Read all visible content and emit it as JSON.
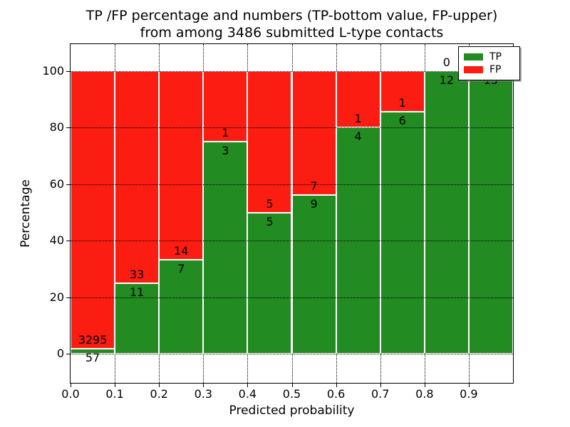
{
  "title": {
    "line1": "TP /FP percentage and numbers (TP-bottom value, FP-upper)",
    "line2": "from among 3486 submitted L-type contacts"
  },
  "axes": {
    "xlabel": "Predicted probability",
    "ylabel": "Percentage",
    "x_tick_labels": [
      "0.0",
      "0.1",
      "0.2",
      "0.3",
      "0.4",
      "0.5",
      "0.6",
      "0.7",
      "0.8",
      "0.9"
    ],
    "y_tick_labels": [
      "0",
      "20",
      "40",
      "60",
      "80",
      "100"
    ],
    "y_tick_values": [
      0,
      20,
      40,
      60,
      80,
      100
    ]
  },
  "legend": {
    "items": [
      {
        "label": "TP",
        "color": "#228b22"
      },
      {
        "label": "FP",
        "color": "#fb1c12"
      }
    ],
    "position": "upper right"
  },
  "chart_data": {
    "type": "bar",
    "stacked": true,
    "title": "TP /FP percentage and numbers (TP-bottom value, FP-upper) from among 3486 submitted L-type contacts",
    "xlabel": "Predicted probability",
    "ylabel": "Percentage",
    "total_contacts": 3486,
    "bin_starts": [
      0.0,
      0.1,
      0.2,
      0.3,
      0.4,
      0.5,
      0.6,
      0.7,
      0.8,
      0.9
    ],
    "bin_width": 0.1,
    "series": [
      {
        "name": "TP",
        "color": "#228b22",
        "counts": [
          57,
          11,
          7,
          3,
          5,
          9,
          4,
          6,
          12,
          15
        ]
      },
      {
        "name": "FP",
        "color": "#fb1c12",
        "counts": [
          3295,
          33,
          14,
          1,
          5,
          7,
          1,
          1,
          0,
          0
        ]
      }
    ],
    "tp_percent": [
      1.7,
      25.0,
      33.3,
      75.0,
      50.0,
      56.2,
      80.0,
      85.7,
      100.0,
      100.0
    ],
    "xlim": [
      0.0,
      1.0
    ],
    "ylim": [
      -10.3,
      109.6
    ],
    "grid": true,
    "legend_position": "upper right"
  }
}
